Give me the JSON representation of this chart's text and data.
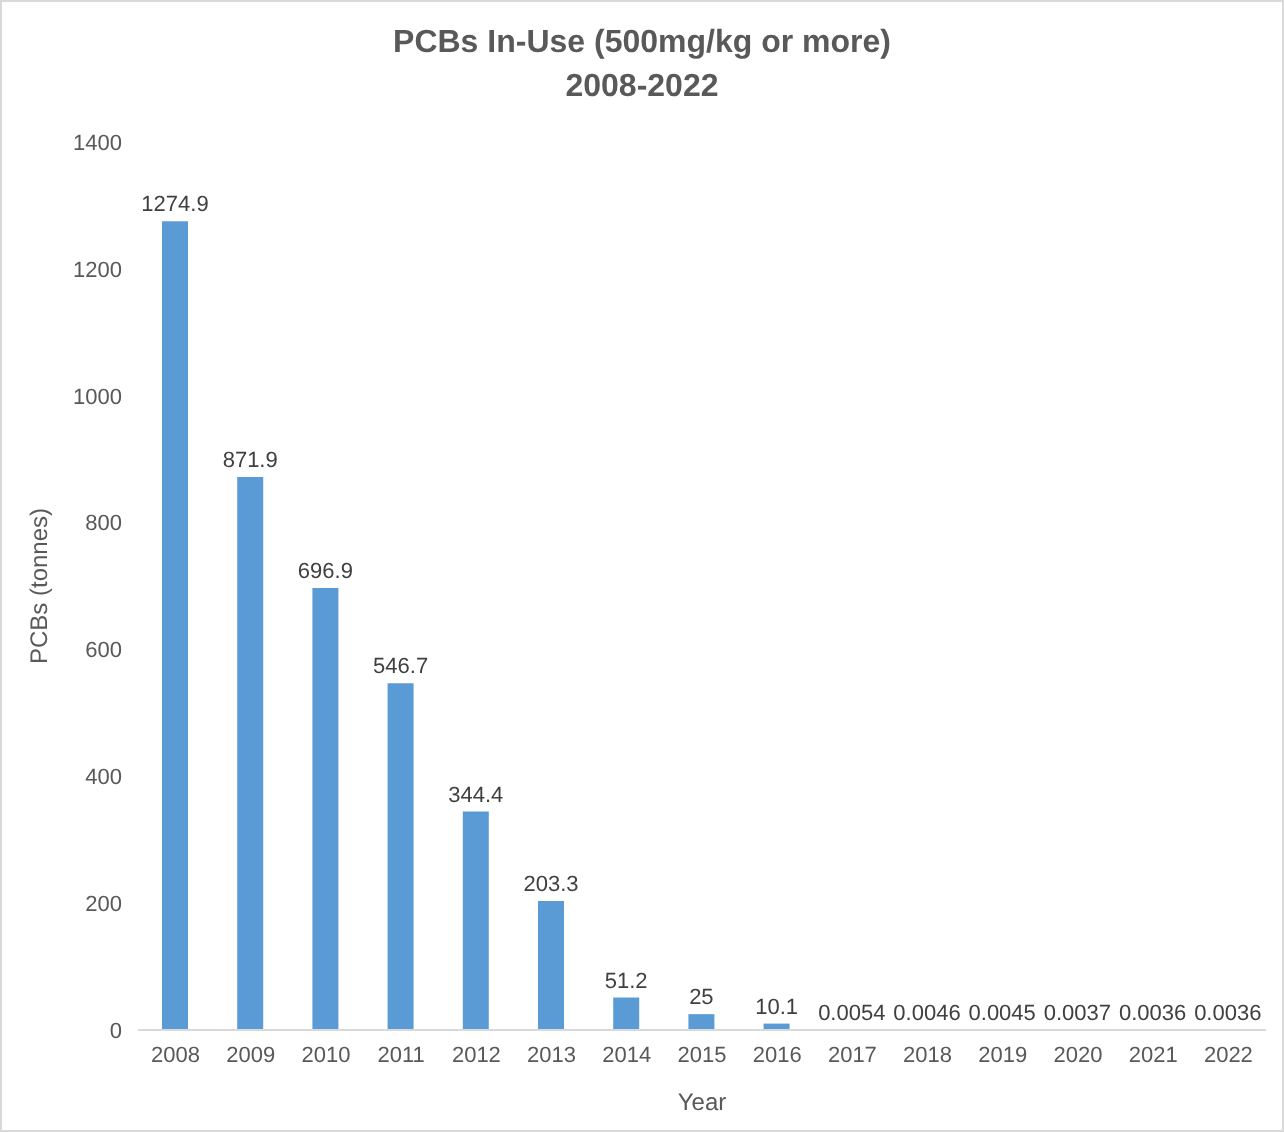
{
  "chart_data": {
    "type": "bar",
    "title": "PCBs In-Use (500mg/kg or more)",
    "subtitle": "2008-2022",
    "xlabel": "Year",
    "ylabel": "PCBs (tonnes)",
    "categories": [
      "2008",
      "2009",
      "2010",
      "2011",
      "2012",
      "2013",
      "2014",
      "2015",
      "2016",
      "2017",
      "2018",
      "2019",
      "2020",
      "2021",
      "2022"
    ],
    "values": [
      1274.9,
      871.9,
      696.9,
      546.7,
      344.4,
      203.3,
      51.2,
      25,
      10.1,
      0.0054,
      0.0046,
      0.0045,
      0.0037,
      0.0036,
      0.0036
    ],
    "color": "#5b9bd5",
    "ylim": [
      0,
      1400
    ],
    "yticks": [
      0,
      200,
      400,
      600,
      800,
      1000,
      1200,
      1400
    ],
    "grid": false,
    "data_labels": true
  }
}
